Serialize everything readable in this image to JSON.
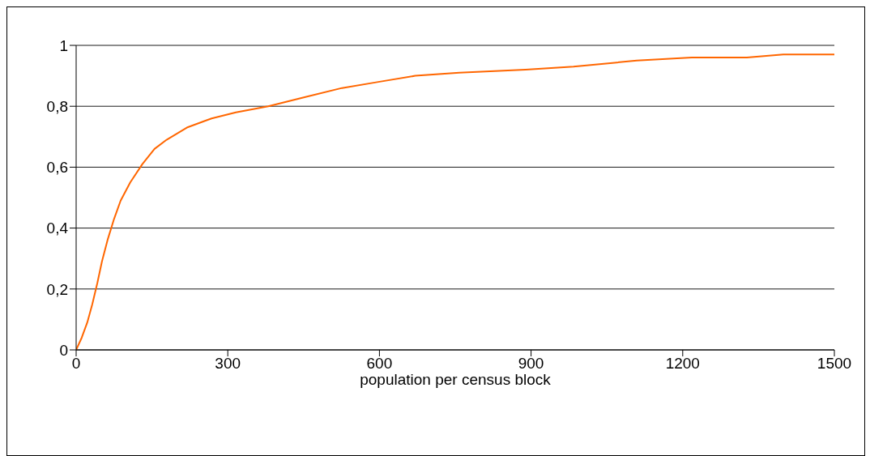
{
  "chart_data": {
    "type": "line",
    "xlabel": "population per census block",
    "x": [
      0,
      11,
      22,
      32,
      42,
      51,
      62,
      75,
      88,
      107,
      131,
      155,
      179,
      219,
      268,
      316,
      380,
      452,
      526,
      598,
      671,
      758,
      889,
      984,
      1109,
      1218,
      1327,
      1399,
      1500
    ],
    "series": [
      {
        "color": "#ff6600",
        "values": [
          0,
          0.04,
          0.09,
          0.15,
          0.22,
          0.29,
          0.36,
          0.43,
          0.49,
          0.55,
          0.61,
          0.66,
          0.69,
          0.73,
          0.76,
          0.78,
          0.8,
          0.83,
          0.86,
          0.88,
          0.9,
          0.91,
          0.92,
          0.93,
          0.95,
          0.96,
          0.96,
          0.97,
          0.97
        ]
      }
    ],
    "xlim": [
      0,
      1500
    ],
    "xticks": [
      0,
      300,
      600,
      900,
      1200,
      1500
    ],
    "ylim": [
      0,
      1
    ],
    "yticks": [
      0,
      {
        "value": 0.2,
        "label": "0,2"
      },
      {
        "value": 0.4,
        "label": "0,4"
      },
      {
        "value": 0.6,
        "label": "0,6"
      },
      {
        "value": 0.8,
        "label": "0,8"
      },
      1
    ],
    "grid": "y",
    "marker": "none",
    "line_style": "solid"
  }
}
